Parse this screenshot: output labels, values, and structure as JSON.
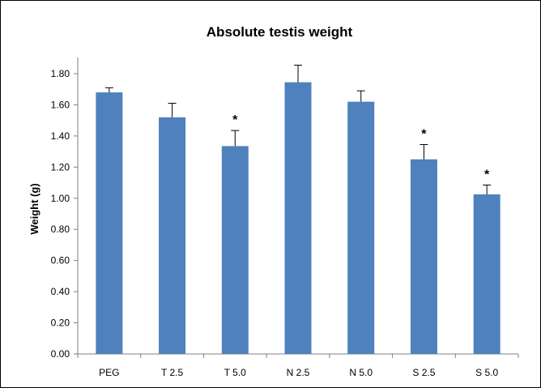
{
  "chart_data": {
    "type": "bar",
    "title": "Absolute testis weight",
    "xlabel": "",
    "ylabel": "Weight (g)",
    "categories": [
      "PEG",
      "T 2.5",
      "T 5.0",
      "N 2.5",
      "N 5.0",
      "S 2.5",
      "S 5.0"
    ],
    "values": [
      1.68,
      1.52,
      1.335,
      1.745,
      1.62,
      1.25,
      1.025
    ],
    "error_upper": [
      1.71,
      1.61,
      1.435,
      1.855,
      1.69,
      1.345,
      1.085
    ],
    "significance": [
      "",
      "",
      "*",
      "",
      "",
      "*",
      "*"
    ],
    "ylim": [
      0,
      1.9
    ],
    "yticks": [
      "0.00",
      "0.20",
      "0.40",
      "0.60",
      "0.80",
      "1.00",
      "1.20",
      "1.40",
      "1.60",
      "1.80"
    ],
    "ytick_values": [
      0,
      0.2,
      0.4,
      0.6,
      0.8,
      1.0,
      1.2,
      1.4,
      1.6,
      1.8
    ],
    "grid": false,
    "legend": "none",
    "bar_color": "#4F81BD"
  }
}
